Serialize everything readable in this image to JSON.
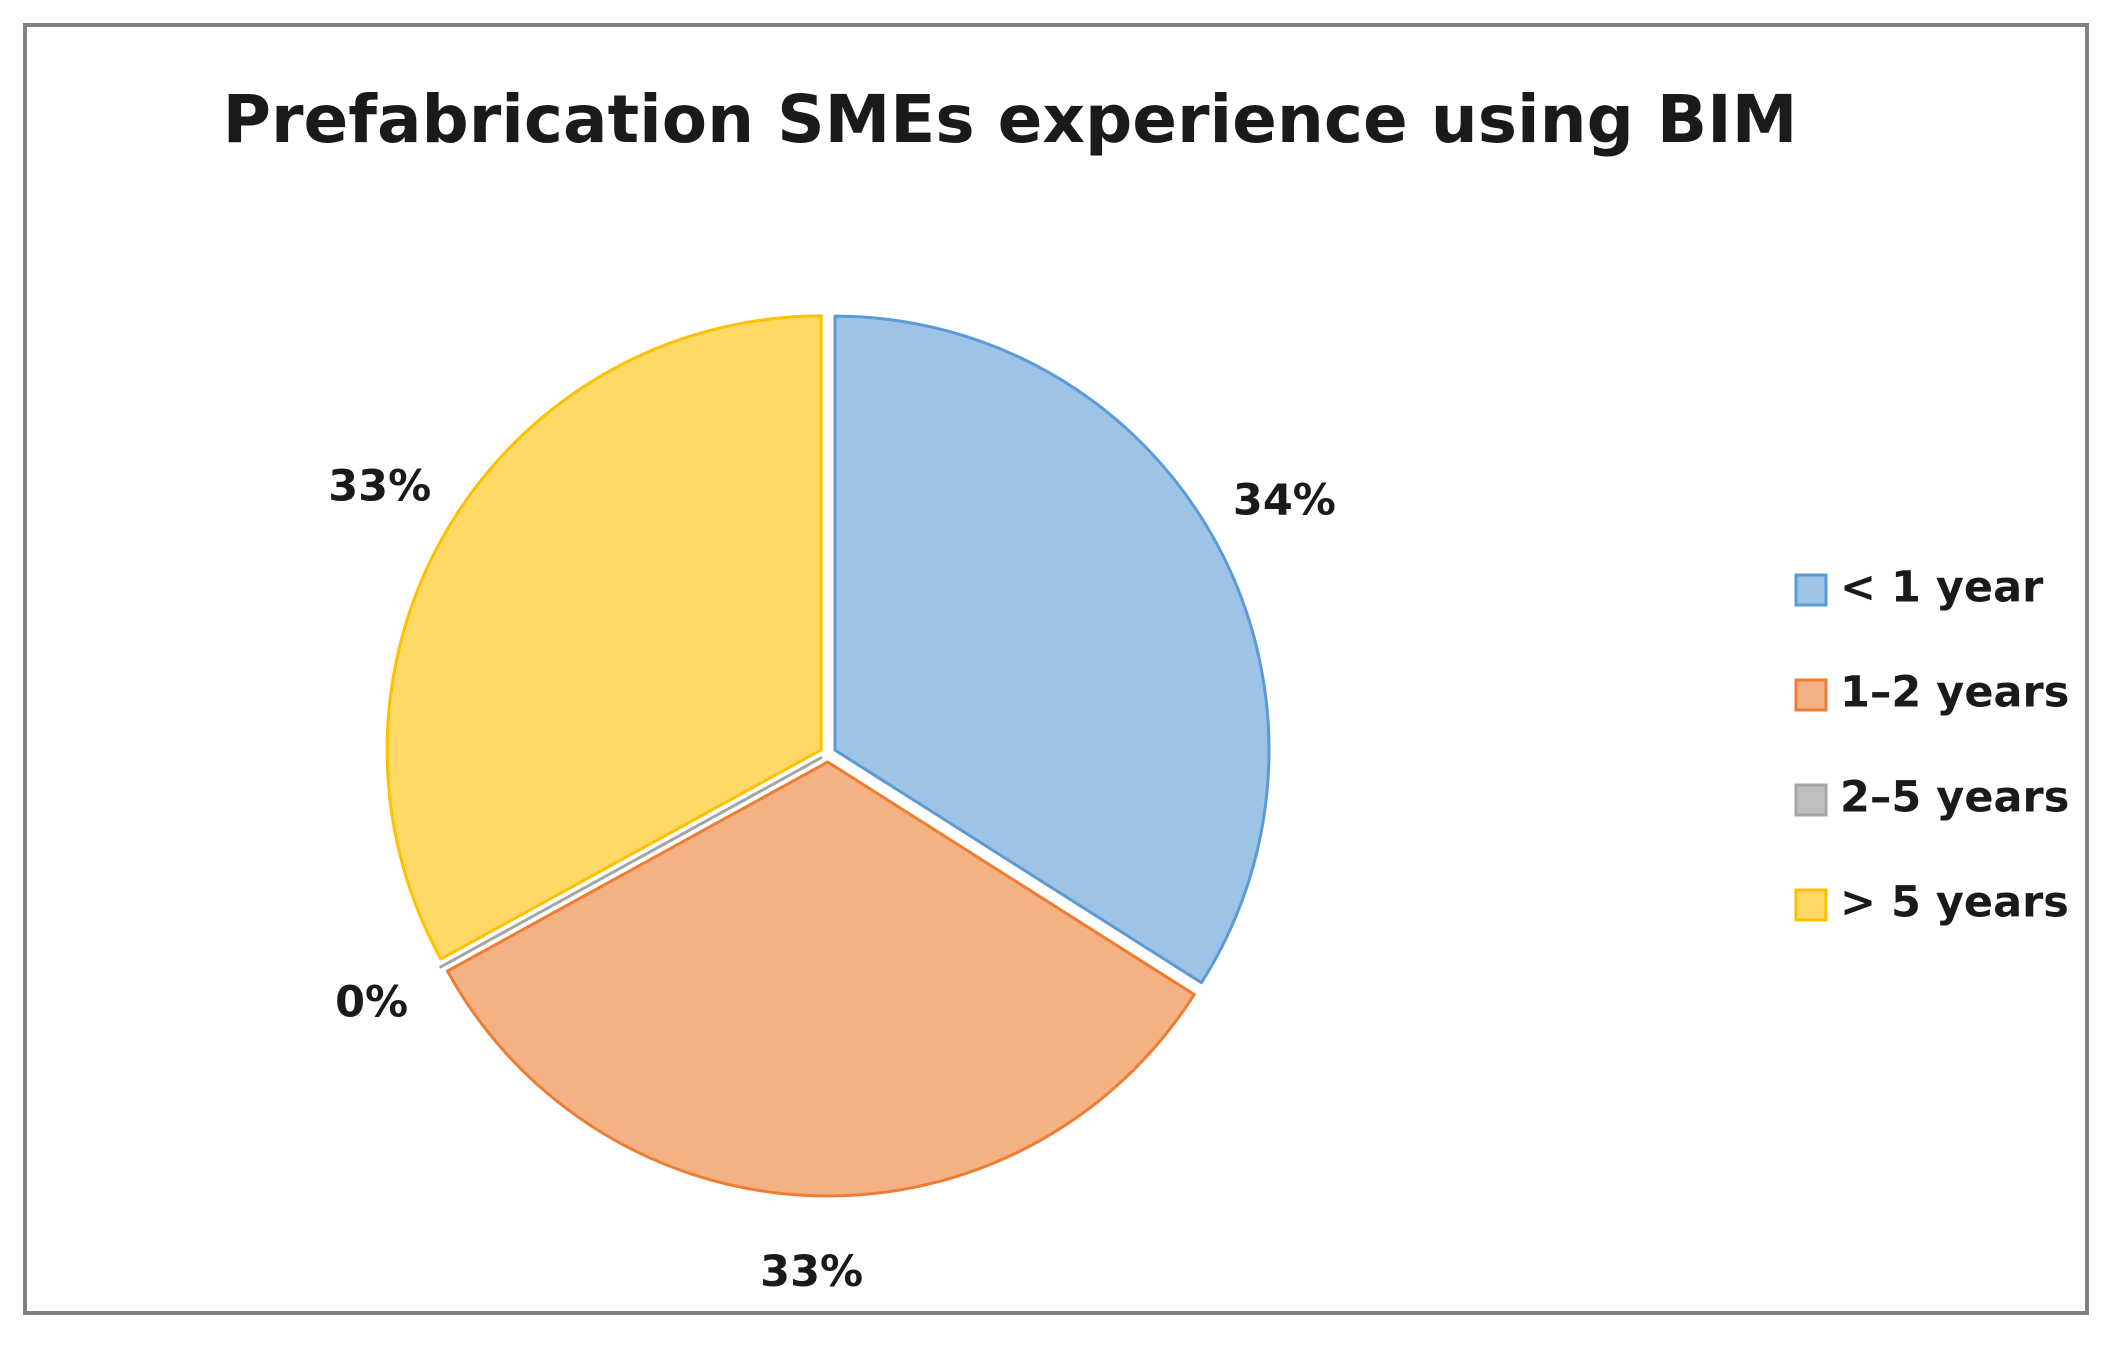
{
  "chart_data": {
    "type": "pie",
    "title": "Prefabrication SMEs experience using BIM",
    "categories": [
      "< 1 year",
      "1–2 years",
      "2–5 years",
      "> 5 years"
    ],
    "values": [
      34,
      33,
      0,
      33
    ],
    "value_labels": [
      "34%",
      "33%",
      "0%",
      "33%"
    ],
    "colors": [
      "#9dc3e6",
      "#f4b183",
      "#bfbfbf",
      "#ffd966"
    ],
    "edge_colors": [
      "#5b9bd5",
      "#ed7d31",
      "#a5a5a5",
      "#ffc000"
    ],
    "legend": "right"
  }
}
